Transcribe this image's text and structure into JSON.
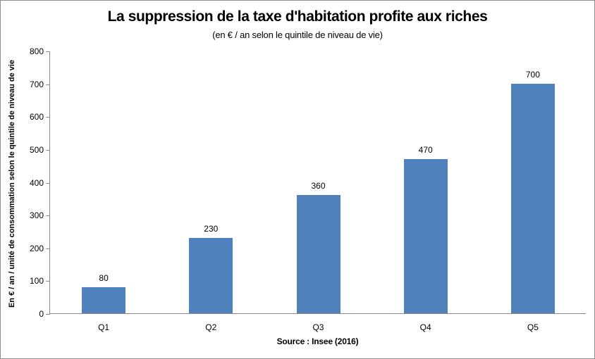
{
  "chart_data": {
    "type": "bar",
    "title": "La suppression de la taxe d'habitation profite aux riches",
    "subtitle": "(en € / an selon le quintile de niveau de vie)",
    "categories": [
      "Q1",
      "Q2",
      "Q3",
      "Q4",
      "Q5"
    ],
    "values": [
      80,
      230,
      360,
      470,
      700
    ],
    "data_labels": [
      "80",
      "230",
      "360",
      "470",
      "700"
    ],
    "ylabel": "En € / an / unité de consommation selon le quintile de niveau de vie",
    "xlabel": "Source : Insee (2016)",
    "ylim": [
      0,
      800
    ],
    "yticks": [
      0,
      100,
      200,
      300,
      400,
      500,
      600,
      700,
      800
    ],
    "grid": false,
    "legend": "none",
    "bar_color": "#4F81BD",
    "axis_color": "#898989",
    "frame_border_color": "#8e8e8e"
  }
}
